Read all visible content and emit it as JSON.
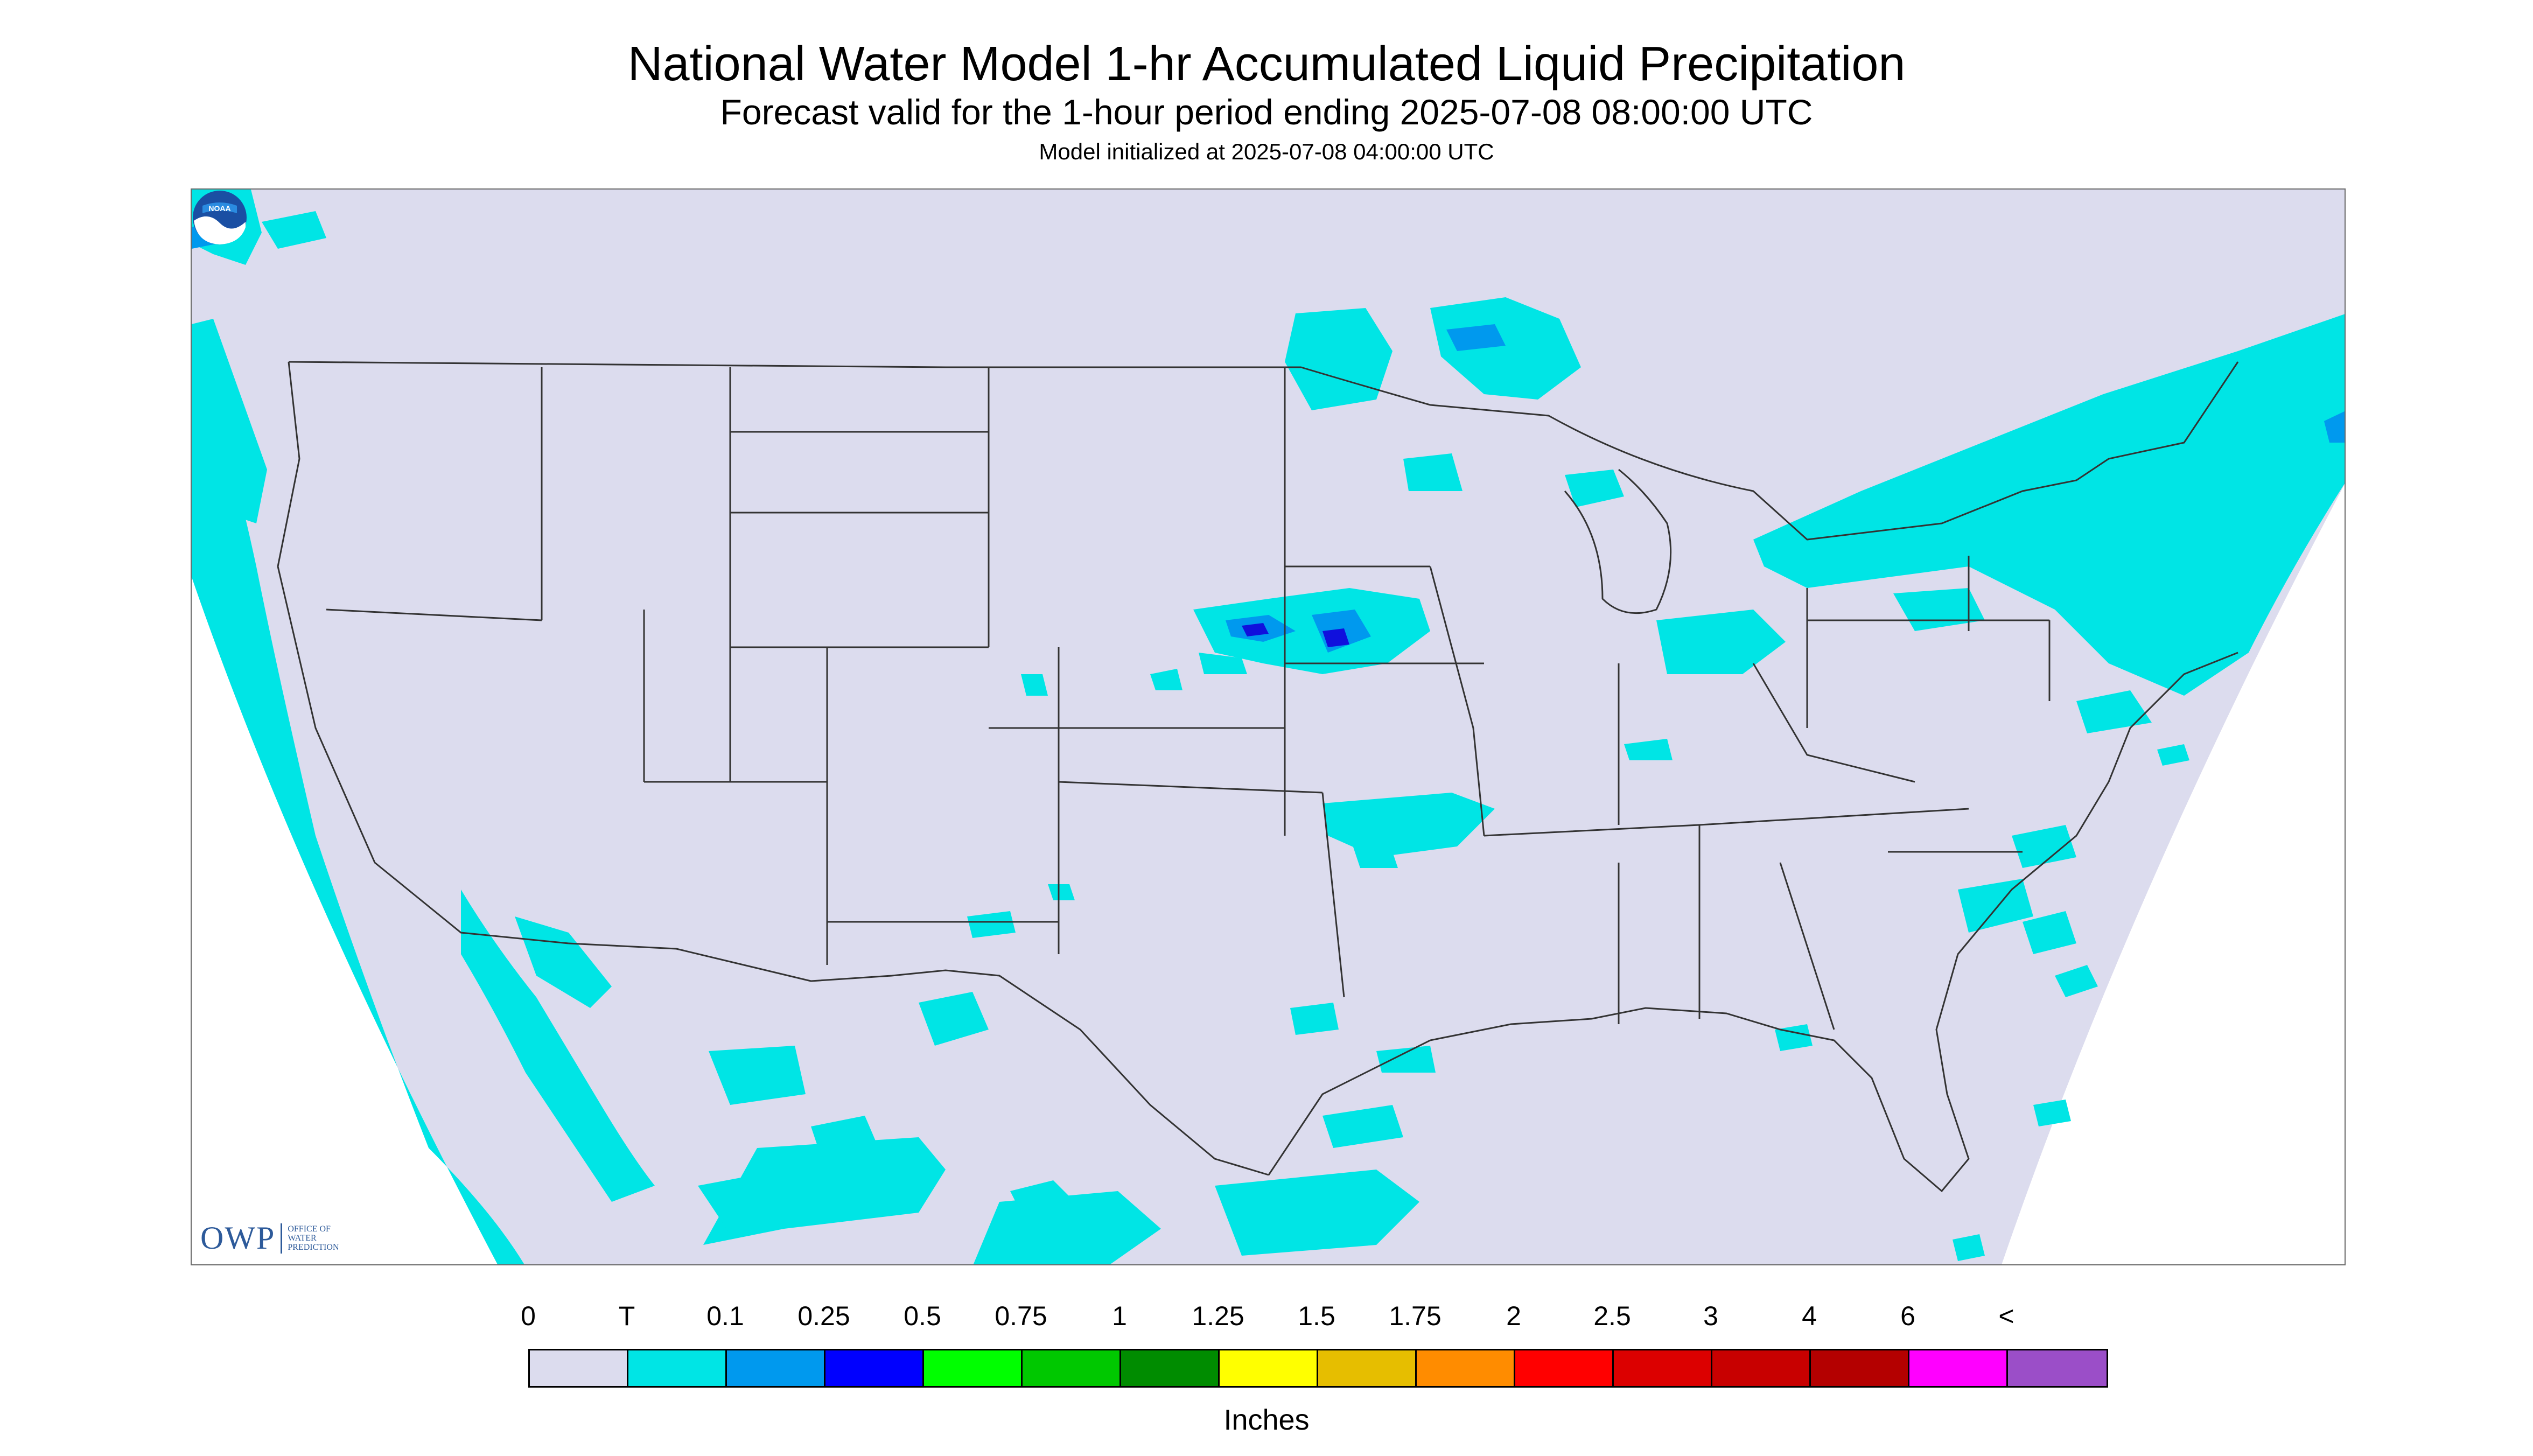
{
  "header": {
    "title": "National Water Model 1-hr Accumulated Liquid Precipitation",
    "subtitle": "Forecast valid for the 1-hour period ending 2025-07-08 08:00:00 UTC",
    "init": "Model initialized at 2025-07-08 04:00:00 UTC"
  },
  "map": {
    "background_color": "#dcdcee",
    "outside_domain_color": "#ffffff",
    "boundary_color": "#333333",
    "precip_light_color": "#00e5e5",
    "precip_medium_color": "#0099ee",
    "precip_heavy_color": "#1010dd",
    "region": "CONUS"
  },
  "logos": {
    "owp_mark": "OWP",
    "owp_text": [
      "OFFICE OF",
      "WATER",
      "PREDICTION"
    ],
    "noaa_text": "NOAA"
  },
  "legend": {
    "labels": [
      "0",
      "T",
      "0.1",
      "0.25",
      "0.5",
      "0.75",
      "1",
      "1.25",
      "1.5",
      "1.75",
      "2",
      "2.5",
      "3",
      "4",
      "6",
      "<"
    ],
    "colors": [
      "#dcdcee",
      "#00e5e5",
      "#0099ee",
      "#0000ff",
      "#00ff00",
      "#00c800",
      "#008c00",
      "#ffff00",
      "#e6be00",
      "#ff8c00",
      "#ff0000",
      "#dc0000",
      "#c80000",
      "#b40000",
      "#ff00ff",
      "#9b4ec8"
    ],
    "units": "Inches"
  }
}
